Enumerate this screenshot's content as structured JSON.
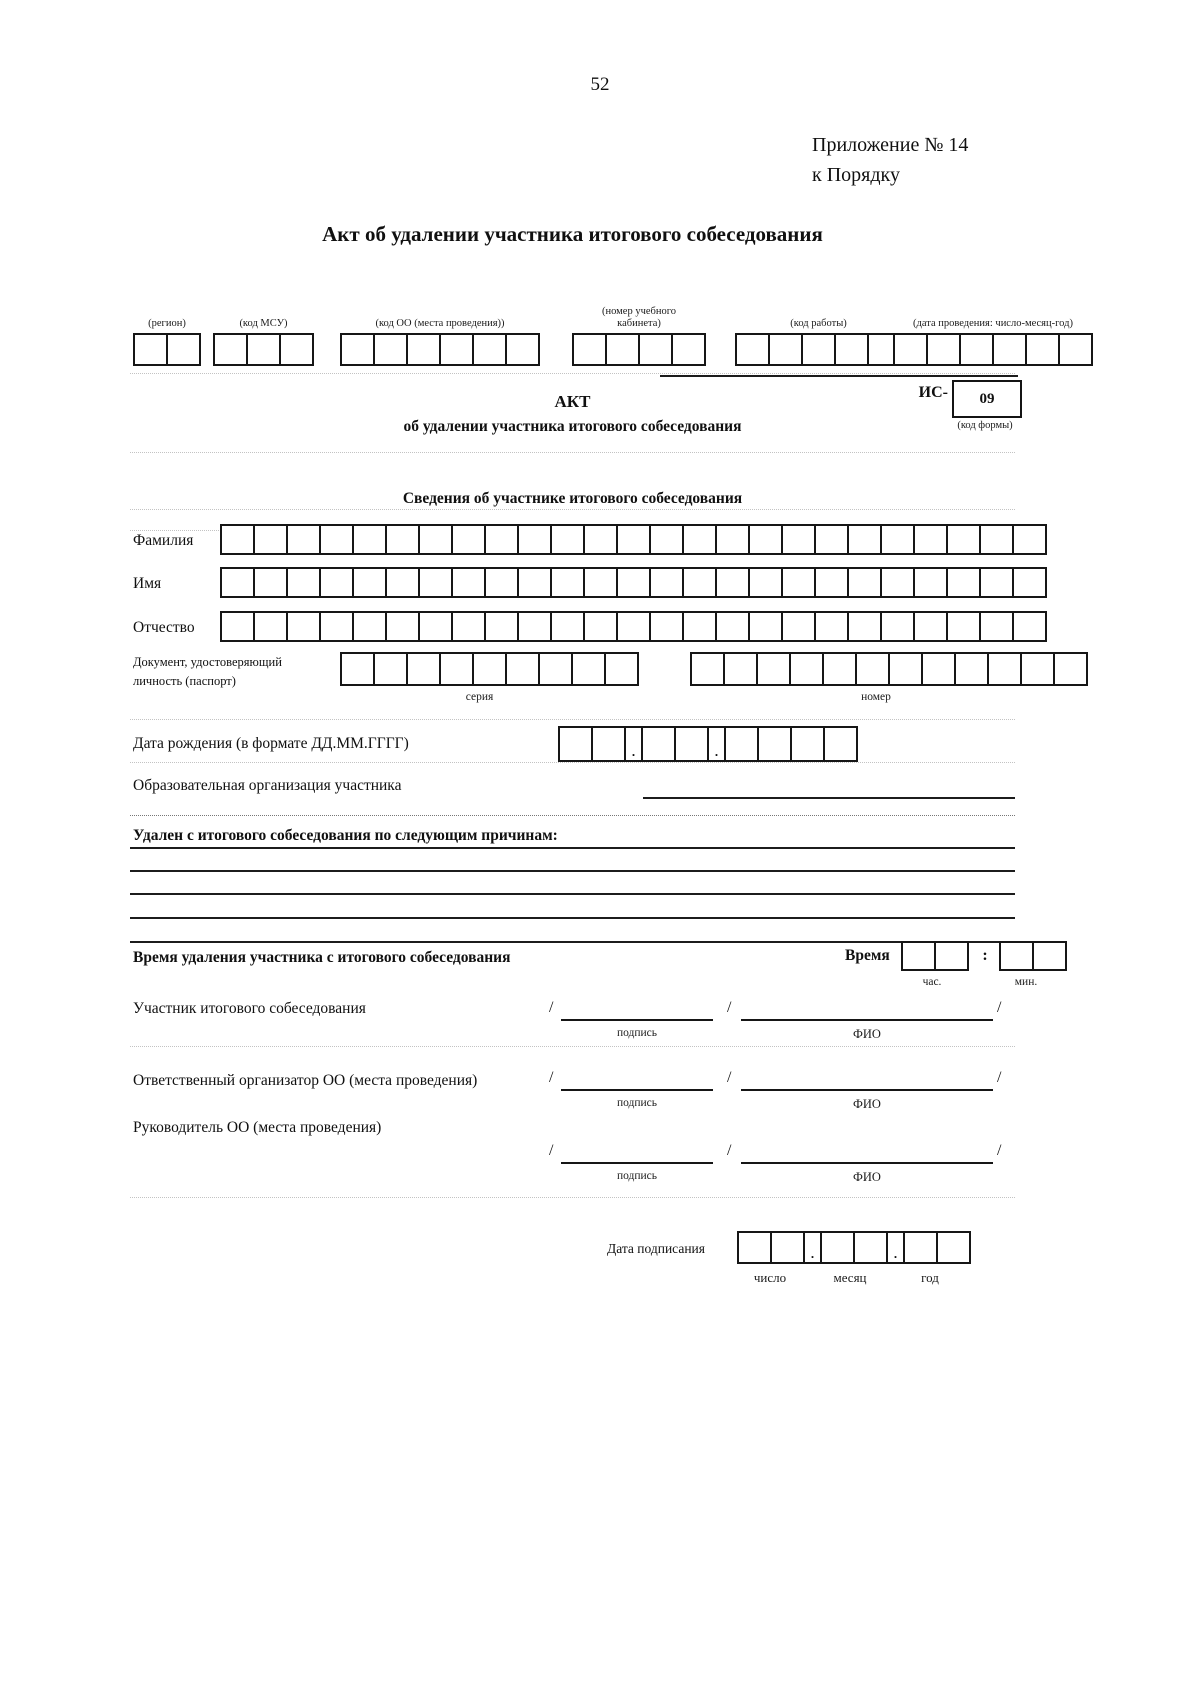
{
  "page_number": "52",
  "annex": {
    "line1": "Приложение № 14",
    "line2": "к Порядку"
  },
  "doc_title": "Акт об удалении участника итогового собеседования",
  "separators": {
    "slash": "/",
    "dot": ".",
    "colon": ":"
  },
  "code_row": {
    "groups": [
      {
        "label": "(регион)",
        "cells": 2
      },
      {
        "label": "(код МСУ)",
        "cells": 3
      },
      {
        "label": "(код ОО (места проведения))",
        "cells": 6
      },
      {
        "label": "(номер учебного кабинета)",
        "cells": 4
      },
      {
        "label": "(код работы)",
        "cells": 5
      },
      {
        "label": "(дата проведения: число-месяц-год)",
        "cells": 6
      }
    ]
  },
  "act_header": {
    "title": "АКТ",
    "subtitle": "об удалении участника итогового собеседования",
    "form_code_label": "ИС-",
    "form_code_value": "09",
    "form_code_caption": "(код формы)"
  },
  "participant": {
    "heading": "Сведения об участнике итогового собеседования",
    "name_rows": [
      {
        "label": "Фамилия",
        "cells": 25
      },
      {
        "label": "Имя",
        "cells": 25
      },
      {
        "label": "Отчество",
        "cells": 25
      }
    ],
    "identity_document": {
      "label": "Документ, удостоверяющий личность (паспорт)",
      "series_caption": "серия",
      "series_cells": 9,
      "number_caption": "номер",
      "number_cells": 12
    },
    "birth_date": {
      "label": "Дата рождения (в формате ДД.ММ.ГГГГ)",
      "groups": [
        2,
        2,
        4
      ]
    },
    "organization_label": "Образовательная организация участника"
  },
  "removal_reasons": {
    "heading": "Удален с итогового собеседования по следующим причинам:"
  },
  "removal_time": {
    "label": "Время удаления участника с итогового собеседования",
    "time_word": "Время",
    "groups": [
      2,
      2
    ],
    "hours_caption": "час.",
    "minutes_caption": "мин."
  },
  "signatures": [
    {
      "label": "Участник итогового собеседования",
      "signature_caption": "подпись",
      "name_caption": "ФИО"
    },
    {
      "label": "Ответственный организатор ОО (места проведения)",
      "signature_caption": "подпись",
      "name_caption": "ФИО"
    },
    {
      "label": "Руководитель ОО (места проведения)",
      "signature_caption": "подпись",
      "name_caption": "ФИО"
    }
  ],
  "signing_date": {
    "label": "Дата подписания",
    "groups": [
      2,
      2,
      2
    ],
    "day_caption": "число",
    "month_caption": "месяц",
    "year_caption": "год"
  }
}
